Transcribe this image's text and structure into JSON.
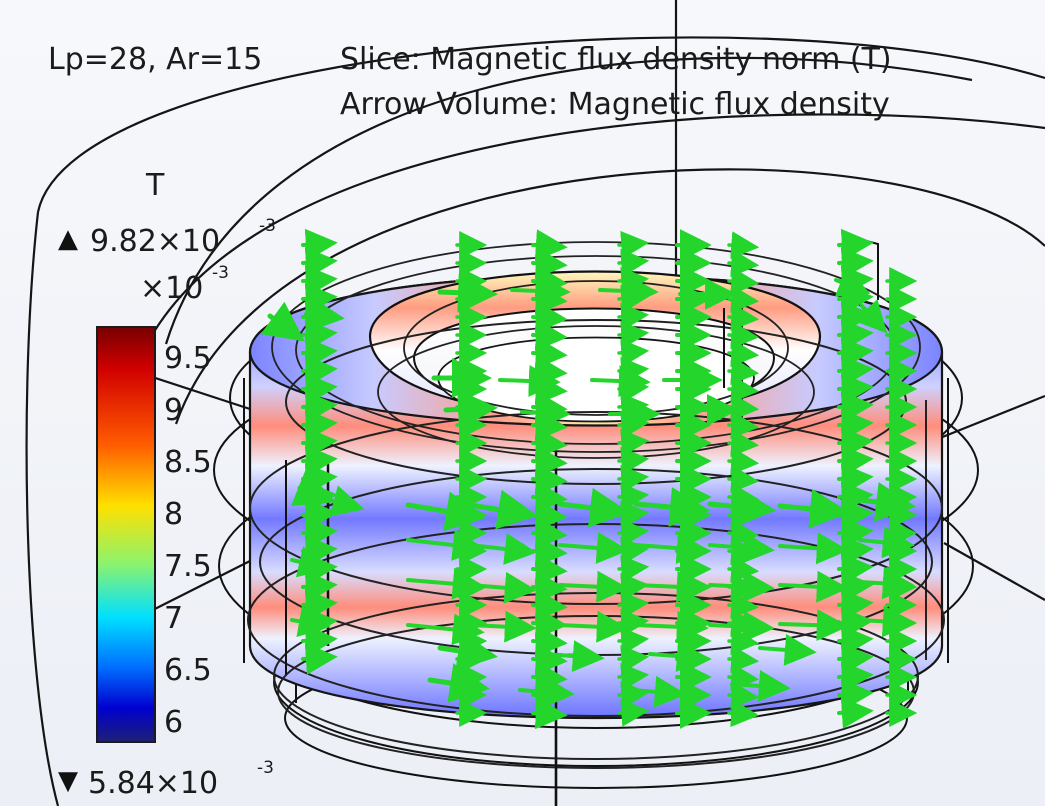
{
  "title_left": "Lp=28, Ar=15",
  "slice_label": "Slice: Magnetic flux density norm (T)",
  "arrow_label": "Arrow Volume: Magnetic flux density",
  "legend": {
    "unit": "T",
    "max_symbol": "▲",
    "max_mantissa": "9.82×10",
    "max_exponent": "-3",
    "scale_mantissa": "×10",
    "scale_exponent": "-3",
    "min_symbol": "▼",
    "min_mantissa": "5.84×10",
    "min_exponent": "-3",
    "ticks": [
      "9.5",
      "9",
      "8.5",
      "8",
      "7.5",
      "7",
      "6.5",
      "6"
    ],
    "colors": [
      "#7a0000",
      "#d10000",
      "#ff5a00",
      "#ffe000",
      "#8df36d",
      "#00e0ff",
      "#0070ff",
      "#0000d0",
      "#1d1f77"
    ]
  },
  "field_colors": {
    "arrow": "#24d52b",
    "outline": "#121212",
    "ring_blue": "#6f78ff",
    "ring_mid": "#c4c8ff",
    "ring_warm": "#ff8b7e"
  }
}
